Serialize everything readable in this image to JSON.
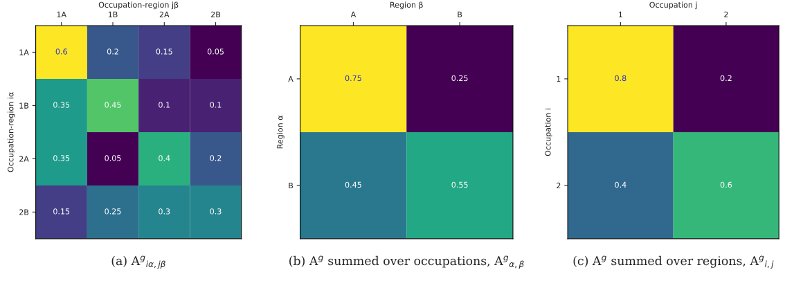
{
  "chart_data": [
    {
      "type": "heatmap",
      "title": "(a) A$^{g}$$_{iα,jβ}$",
      "xlabel": "Occupation-region jβ",
      "ylabel": "Occupation-region iα",
      "categories": [
        "1A",
        "1B",
        "2A",
        "2B"
      ],
      "y_categories": [
        "1A",
        "1B",
        "2A",
        "2B"
      ],
      "cells": [
        [
          0.6,
          0.2,
          0.15,
          0.05
        ],
        [
          0.35,
          0.45,
          0.1,
          0.1
        ],
        [
          0.35,
          0.05,
          0.4,
          0.2
        ],
        [
          0.15,
          0.25,
          0.3,
          0.3
        ]
      ],
      "data_labels": true
    },
    {
      "type": "heatmap",
      "title": "(b) A$^{g}$ summed over occupations, A$^{g}$$_{α,β}$",
      "xlabel": "Region β",
      "ylabel": "Region α",
      "categories": [
        "A",
        "B"
      ],
      "y_categories": [
        "A",
        "B"
      ],
      "cells": [
        [
          0.75,
          0.25
        ],
        [
          0.45,
          0.55
        ]
      ],
      "data_labels": true
    },
    {
      "type": "heatmap",
      "title": "(c) A$^{g}$ summed over regions, A$^{g}$$_{i,j}$",
      "xlabel": "Occupation j",
      "ylabel": "Occupation i",
      "categories": [
        "1",
        "2"
      ],
      "y_categories": [
        "1",
        "2"
      ],
      "cells": [
        [
          0.8,
          0.2
        ],
        [
          0.4,
          0.6
        ]
      ],
      "data_labels": true
    }
  ]
}
